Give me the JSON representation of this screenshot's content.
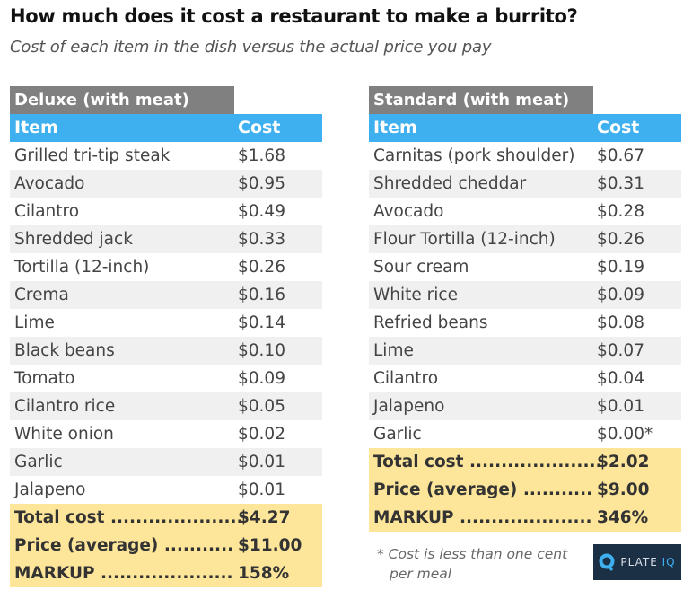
{
  "title": "How much does it cost a restaurant to make a burrito?",
  "subtitle": "Cost of each item in the dish versus the actual price you pay",
  "colors": {
    "group_header": "#808080",
    "column_header": "#3fb0ef",
    "totals_bg": "#fde59a",
    "alt_row": "#f0f0f0",
    "logo_bg": "#1b2f45"
  },
  "tables": [
    {
      "group": "Deluxe (with meat)",
      "headers": [
        "Item",
        "Cost"
      ],
      "rows": [
        [
          "Grilled tri-tip steak",
          "$1.68"
        ],
        [
          "Avocado",
          "$0.95"
        ],
        [
          "Cilantro",
          "$0.49"
        ],
        [
          "Shredded jack",
          "$0.33"
        ],
        [
          "Tortilla (12-inch)",
          "$0.26"
        ],
        [
          "Crema",
          "$0.16"
        ],
        [
          "Lime",
          "$0.14"
        ],
        [
          "Black beans",
          "$0.10"
        ],
        [
          "Tomato",
          "$0.09"
        ],
        [
          "Cilantro rice",
          "$0.05"
        ],
        [
          "White onion",
          "$0.02"
        ],
        [
          "Garlic",
          "$0.01"
        ],
        [
          "Jalapeno",
          "$0.01"
        ]
      ],
      "totals": [
        [
          "Total cost .....................",
          "$4.27"
        ],
        [
          "Price (average) ...........",
          "$11.00"
        ],
        [
          "MARKUP .....................",
          "158%"
        ]
      ]
    },
    {
      "group": "Standard (with meat)",
      "headers": [
        "Item",
        "Cost"
      ],
      "rows": [
        [
          "Carnitas (pork shoulder)",
          "$0.67"
        ],
        [
          "Shredded cheddar",
          "$0.31"
        ],
        [
          "Avocado",
          "$0.28"
        ],
        [
          "Flour Tortilla (12-inch)",
          "$0.26"
        ],
        [
          "Sour cream",
          "$0.19"
        ],
        [
          "White rice",
          "$0.09"
        ],
        [
          "Refried beans",
          "$0.08"
        ],
        [
          "Lime",
          "$0.07"
        ],
        [
          "Cilantro",
          "$0.04"
        ],
        [
          "Jalapeno",
          "$0.01"
        ],
        [
          "Garlic",
          "$0.00*"
        ]
      ],
      "totals": [
        [
          "Total cost .....................",
          "$2.02"
        ],
        [
          "Price (average) ...........",
          "$9.00"
        ],
        [
          "MARKUP .....................",
          "346%"
        ]
      ]
    }
  ],
  "footnote": [
    "* Cost is less than one cent",
    "per meal"
  ],
  "logo": {
    "text": "PLATE",
    "accent": "IQ",
    "icon": "plate-iq-logo-icon"
  }
}
